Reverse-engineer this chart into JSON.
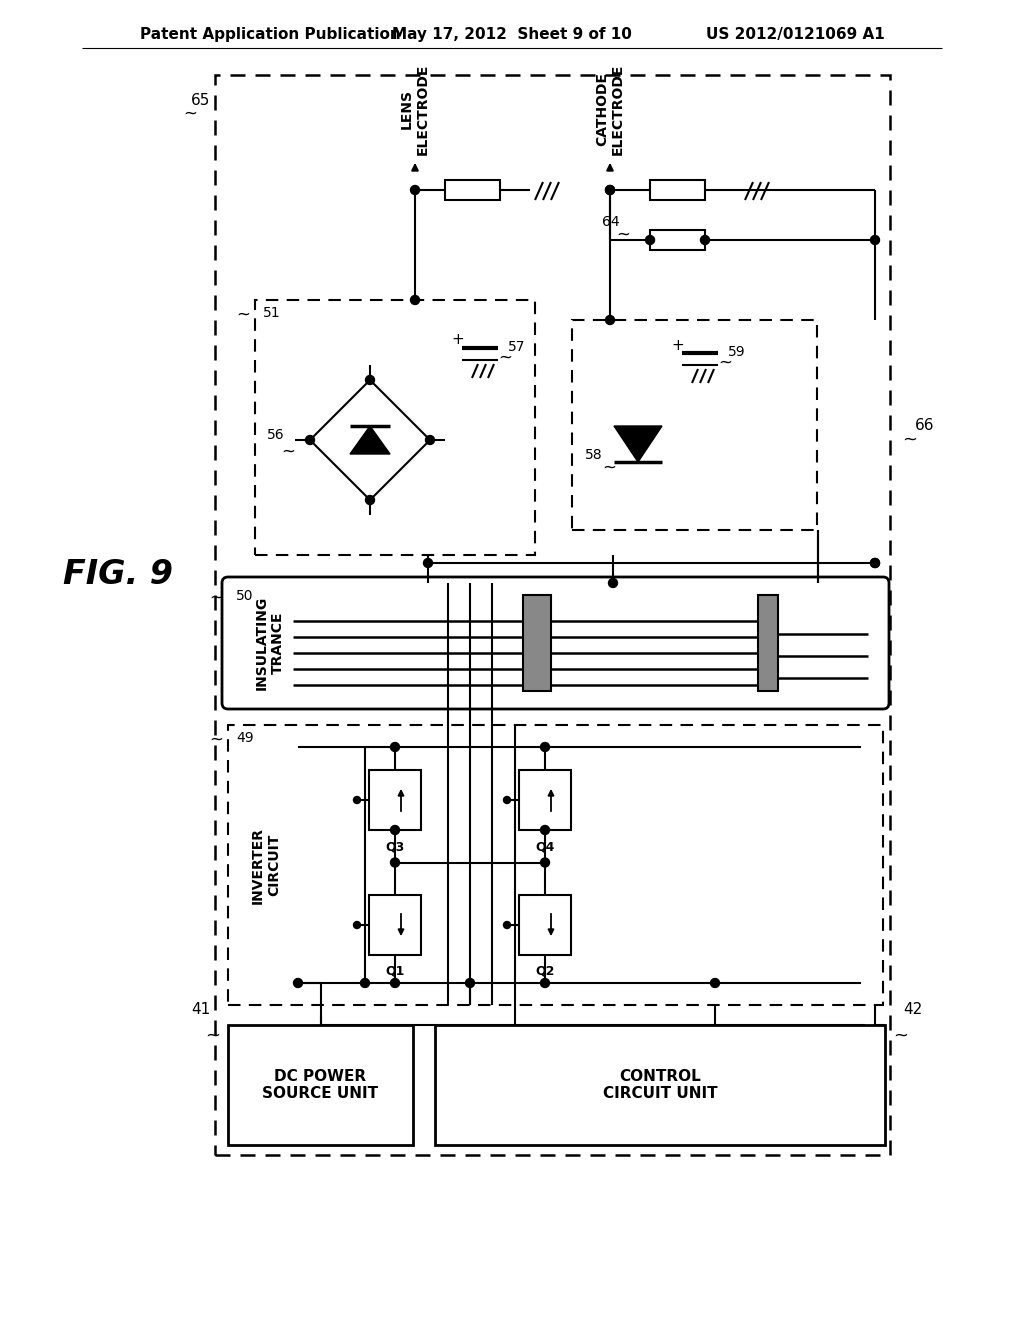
{
  "bg": "#ffffff",
  "lc": "#000000",
  "header_left": "Patent Application Publication",
  "header_center": "May 17, 2012  Sheet 9 of 10",
  "header_right": "US 2012/0121069 A1",
  "fig_label": "FIG. 9"
}
